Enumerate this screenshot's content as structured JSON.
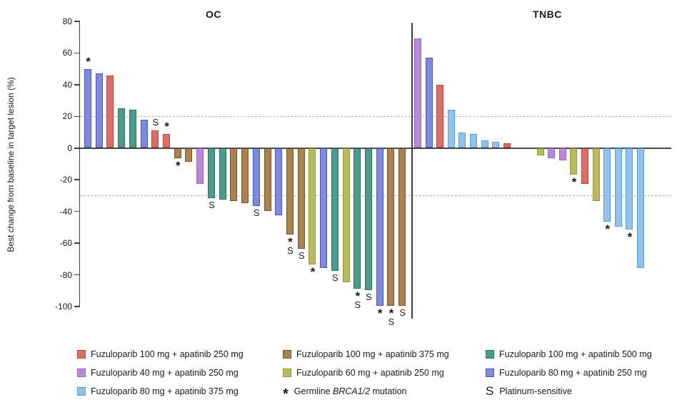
{
  "figure": {
    "y_axis_label": "Best change from baseline in target lesion (%)"
  },
  "axis": {
    "ticks": [
      80,
      60,
      40,
      20,
      0,
      -20,
      -40,
      -60,
      -80,
      -100
    ],
    "range": [
      -100,
      80
    ],
    "ref_lines": [
      20,
      -30
    ]
  },
  "groups": {
    "f100a250": {
      "label": "Fuzuloparib 100 mg + apatinib 250 mg",
      "fill": "#DB6E66",
      "border": "#BE4239"
    },
    "f40a250": {
      "label": "Fuzuloparib 40 mg + apatinib 250 mg",
      "fill": "#B88CD2",
      "border": "#A95FD4"
    },
    "f80a375": {
      "label": "Fuzuloparib 80 mg + apatinib 375 mg",
      "fill": "#93C1E7",
      "border": "#51A0E8"
    },
    "f100a375": {
      "label": "Fuzuloparib 100 mg + apatinib 375 mg",
      "fill": "#A8834F",
      "border": "#7A5328"
    },
    "f60a250": {
      "label": "Fuzuloparib 60 mg + apatinib 250 mg",
      "fill": "#B7BB5E",
      "border": "#8F9D33"
    },
    "f100a500": {
      "label": "Fuzuloparib 100 mg + apatinib 500 mg",
      "fill": "#4E9A8D",
      "border": "#2D6F62"
    },
    "f80a250": {
      "label": "Fuzuloparib 80 mg + apatinib 250 mg",
      "fill": "#7F8ADA",
      "border": "#4A52C4"
    }
  },
  "chart_data": {
    "type": "bar",
    "ylabel": "Best change from baseline in target lesion (%)",
    "ylim": [
      -100,
      80
    ],
    "ref_lines": [
      20,
      -30
    ],
    "grid": false,
    "marker_meanings": {
      "*": "Germline BRCA1/2 mutation",
      "S": "Platinum-sensitive"
    },
    "sections": [
      {
        "title": "OC",
        "bars": [
          {
            "value": 50,
            "group": "f80a250",
            "marker": "*"
          },
          {
            "value": 47,
            "group": "f80a250",
            "marker": ""
          },
          {
            "value": 46,
            "group": "f100a250",
            "marker": ""
          },
          {
            "value": 25,
            "group": "f100a500",
            "marker": ""
          },
          {
            "value": 24,
            "group": "f100a500",
            "marker": ""
          },
          {
            "value": 18,
            "group": "f80a250",
            "marker": ""
          },
          {
            "value": 11,
            "group": "f100a250",
            "marker": "S"
          },
          {
            "value": 9,
            "group": "f100a250",
            "marker": "*"
          },
          {
            "value": -7,
            "group": "f100a375",
            "marker": "*"
          },
          {
            "value": -9,
            "group": "f100a375",
            "marker": ""
          },
          {
            "value": -23,
            "group": "f40a250",
            "marker": ""
          },
          {
            "value": -32,
            "group": "f100a500",
            "marker": "S"
          },
          {
            "value": -33,
            "group": "f100a500",
            "marker": ""
          },
          {
            "value": -34,
            "group": "f100a375",
            "marker": ""
          },
          {
            "value": -35,
            "group": "f100a375",
            "marker": ""
          },
          {
            "value": -37,
            "group": "f80a250",
            "marker": "S"
          },
          {
            "value": -40,
            "group": "f100a375",
            "marker": ""
          },
          {
            "value": -43,
            "group": "f80a250",
            "marker": ""
          },
          {
            "value": -55,
            "group": "f100a375",
            "marker": "*S"
          },
          {
            "value": -64,
            "group": "f100a375",
            "marker": "S"
          },
          {
            "value": -74,
            "group": "f60a250",
            "marker": "*"
          },
          {
            "value": -76,
            "group": "f80a250",
            "marker": ""
          },
          {
            "value": -78,
            "group": "f100a500",
            "marker": "S"
          },
          {
            "value": -85,
            "group": "f60a250",
            "marker": ""
          },
          {
            "value": -89,
            "group": "f100a500",
            "marker": "*S"
          },
          {
            "value": -90,
            "group": "f100a500",
            "marker": "S"
          },
          {
            "value": -100,
            "group": "f80a250",
            "marker": "*"
          },
          {
            "value": -100,
            "group": "f100a375",
            "marker": "*S"
          },
          {
            "value": -100,
            "group": "f100a375",
            "marker": "S"
          }
        ]
      },
      {
        "title": "TNBC",
        "bars": [
          {
            "value": 69,
            "group": "f40a250",
            "marker": ""
          },
          {
            "value": 57,
            "group": "f80a250",
            "marker": ""
          },
          {
            "value": 40,
            "group": "f100a250",
            "marker": ""
          },
          {
            "value": 24,
            "group": "f80a375",
            "marker": ""
          },
          {
            "value": 10,
            "group": "f80a375",
            "marker": ""
          },
          {
            "value": 9,
            "group": "f80a375",
            "marker": ""
          },
          {
            "value": 5,
            "group": "f80a375",
            "marker": ""
          },
          {
            "value": 4,
            "group": "f80a375",
            "marker": ""
          },
          {
            "value": 3,
            "group": "f100a250",
            "marker": ""
          },
          {
            "value": 0,
            "group": null,
            "marker": ""
          },
          {
            "value": 0,
            "group": null,
            "marker": ""
          },
          {
            "value": -5,
            "group": "f60a250",
            "marker": ""
          },
          {
            "value": -7,
            "group": "f40a250",
            "marker": ""
          },
          {
            "value": -8,
            "group": "f40a250",
            "marker": ""
          },
          {
            "value": -17,
            "group": "f60a250",
            "marker": "*"
          },
          {
            "value": -23,
            "group": "f100a250",
            "marker": ""
          },
          {
            "value": -34,
            "group": "f60a250",
            "marker": ""
          },
          {
            "value": -47,
            "group": "f80a375",
            "marker": "*"
          },
          {
            "value": -50,
            "group": "f80a375",
            "marker": ""
          },
          {
            "value": -52,
            "group": "f80a375",
            "marker": "*"
          },
          {
            "value": -76,
            "group": "f80a375",
            "marker": ""
          }
        ]
      }
    ]
  },
  "legend": {
    "columns": [
      {
        "x": 108,
        "items": [
          {
            "swatch": "f100a250",
            "parts": [
              {
                "text": "Fuzuloparib 100 mg + apatinib 250 mg",
                "italic": false
              }
            ]
          },
          {
            "swatch": "f40a250",
            "parts": [
              {
                "text": "Fuzuloparib 40 mg + apatinib 250 mg",
                "italic": false
              }
            ]
          },
          {
            "swatch": "f80a375",
            "parts": [
              {
                "text": "Fuzuloparib 80 mg + apatinib 375 mg",
                "italic": false
              }
            ]
          }
        ]
      },
      {
        "x": 396,
        "items": [
          {
            "swatch": "f100a375",
            "parts": [
              {
                "text": "Fuzuloparib 100 mg + apatinib 375 mg",
                "italic": false
              }
            ]
          },
          {
            "swatch": "f60a250",
            "parts": [
              {
                "text": "Fuzuloparib 60 mg + apatinib 250 mg",
                "italic": false
              }
            ]
          },
          {
            "symbol": "*",
            "parts": [
              {
                "text": "Germline ",
                "italic": false
              },
              {
                "text": "BRCA1/2",
                "italic": true
              },
              {
                "text": " mutation",
                "italic": false
              }
            ]
          }
        ]
      },
      {
        "x": 680,
        "items": [
          {
            "swatch": "f100a500",
            "parts": [
              {
                "text": "Fuzuloparib 100 mg + apatinib 500 mg",
                "italic": false
              }
            ]
          },
          {
            "swatch": "f80a250",
            "parts": [
              {
                "text": "Fuzuloparib 80 mg + apatinib 250 mg",
                "italic": false
              }
            ]
          },
          {
            "symbol": "S",
            "parts": [
              {
                "text": "Platinum-sensitive",
                "italic": false
              }
            ]
          }
        ]
      }
    ]
  }
}
